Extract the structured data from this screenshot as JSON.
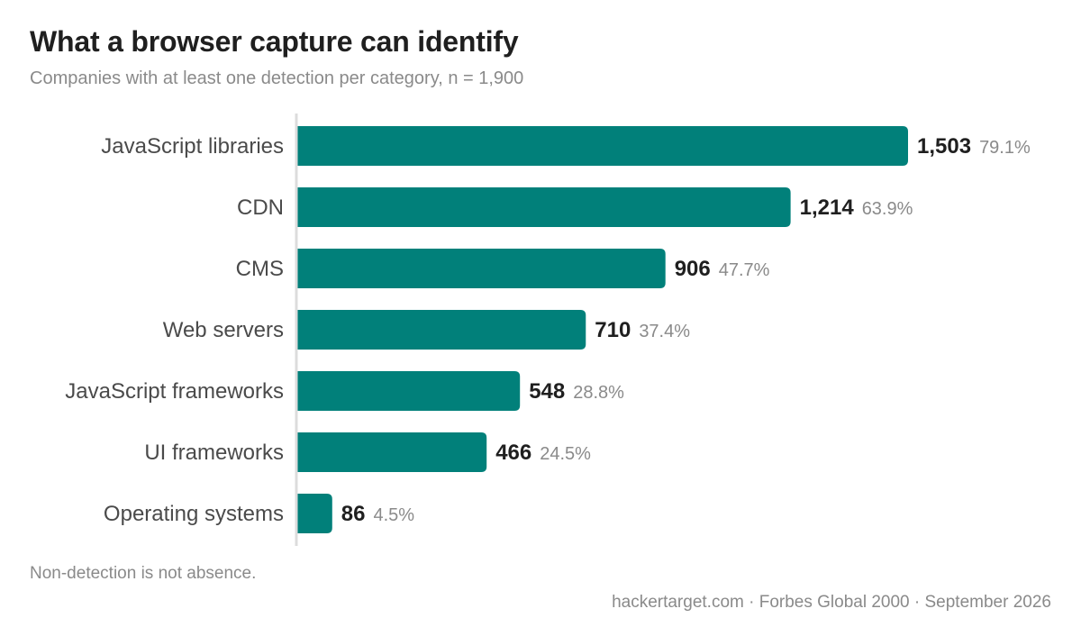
{
  "chart_data": {
    "type": "bar",
    "orientation": "horizontal",
    "title": "What a browser capture can identify",
    "subtitle": "Companies with at least one detection per category, n = 1,900",
    "categories": [
      "JavaScript libraries",
      "CDN",
      "CMS",
      "Web servers",
      "JavaScript frameworks",
      "UI frameworks",
      "Operating systems"
    ],
    "values": [
      1503,
      1214,
      906,
      710,
      548,
      466,
      86
    ],
    "value_labels": [
      "1,503",
      "1,214",
      "906",
      "710",
      "548",
      "466",
      "86"
    ],
    "percent_labels": [
      "79.1%",
      "63.9%",
      "47.7%",
      "37.4%",
      "28.8%",
      "24.5%",
      "4.5%"
    ],
    "total": 1900,
    "xlim": [
      0,
      1900
    ],
    "grid": false,
    "legend": "none",
    "bar_color": "#01807a",
    "axis_color": "#dcdcdc"
  },
  "footer": {
    "note": "Non-detection is not absence.",
    "source": "hackertarget.com · Forbes Global 2000 · September 2026"
  }
}
